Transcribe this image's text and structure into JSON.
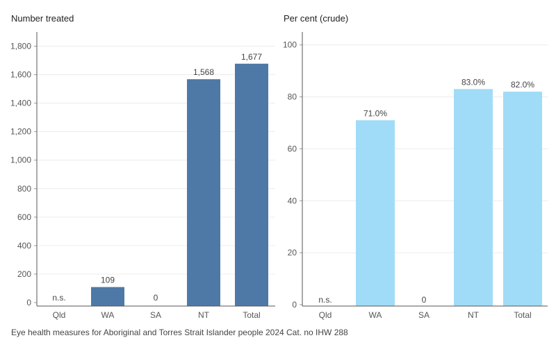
{
  "chart_data": [
    {
      "type": "bar",
      "title": "Number treated",
      "categories": [
        "Qld",
        "WA",
        "SA",
        "NT",
        "Total"
      ],
      "values": [
        null,
        109,
        0,
        1568,
        1677
      ],
      "data_labels": [
        "n.s.",
        "109",
        "0",
        "1,568",
        "1,677"
      ],
      "ylim": [
        0,
        1900
      ],
      "yticks": [
        0,
        200,
        400,
        600,
        800,
        1000,
        1200,
        1400,
        1600,
        1800
      ],
      "ytick_labels": [
        "0",
        "200",
        "400",
        "600",
        "800",
        "1,000",
        "1,200",
        "1,400",
        "1,600",
        "1,800"
      ],
      "grid": true,
      "bar_color": "#4e79a7"
    },
    {
      "type": "bar",
      "title": "Per cent (crude)",
      "categories": [
        "Qld",
        "WA",
        "SA",
        "NT",
        "Total"
      ],
      "values": [
        null,
        71.0,
        0,
        83.0,
        82.0
      ],
      "data_labels": [
        "n.s.",
        "71.0%",
        "0",
        "83.0%",
        "82.0%"
      ],
      "ylim": [
        0,
        105
      ],
      "yticks": [
        0,
        20,
        40,
        60,
        80,
        100
      ],
      "ytick_labels": [
        "0",
        "20",
        "40",
        "60",
        "80",
        "100"
      ],
      "grid": true,
      "bar_color": "#a0dcf7"
    }
  ],
  "footer": "Eye health measures for Aboriginal and Torres Strait Islander people 2024 Cat. no IHW 288"
}
